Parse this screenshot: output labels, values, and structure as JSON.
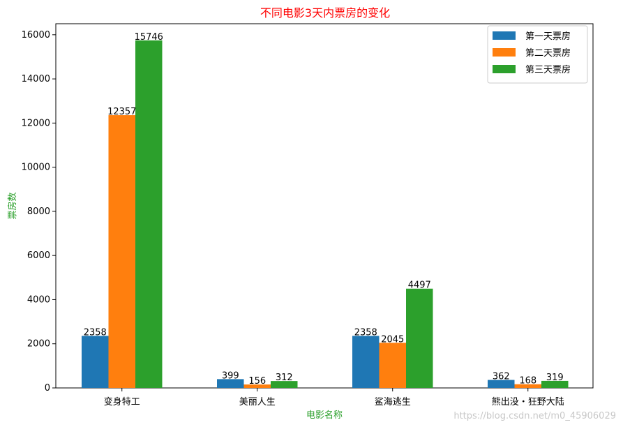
{
  "watermark": "https://blog.csdn.net/m0_45906029",
  "chart_data": {
    "type": "bar",
    "title": "不同电影3天内票房的变化",
    "xlabel": "电影名称",
    "ylabel": "票房数",
    "categories": [
      "变身特工",
      "美丽人生",
      "鲨海逃生",
      "熊出没・狂野大陆"
    ],
    "series": [
      {
        "name": "第一天票房",
        "values": [
          2358,
          399,
          2358,
          362
        ],
        "color": "#1f77b4"
      },
      {
        "name": "第二天票房",
        "values": [
          12357,
          156,
          2045,
          168
        ],
        "color": "#ff7f0e"
      },
      {
        "name": "第三天票房",
        "values": [
          15746,
          312,
          4497,
          319
        ],
        "color": "#2ca02c"
      }
    ],
    "ylim": [
      0,
      16500
    ],
    "yticks": [
      0,
      2000,
      4000,
      6000,
      8000,
      10000,
      12000,
      14000,
      16000
    ],
    "grid": false,
    "legend": "top-right"
  }
}
